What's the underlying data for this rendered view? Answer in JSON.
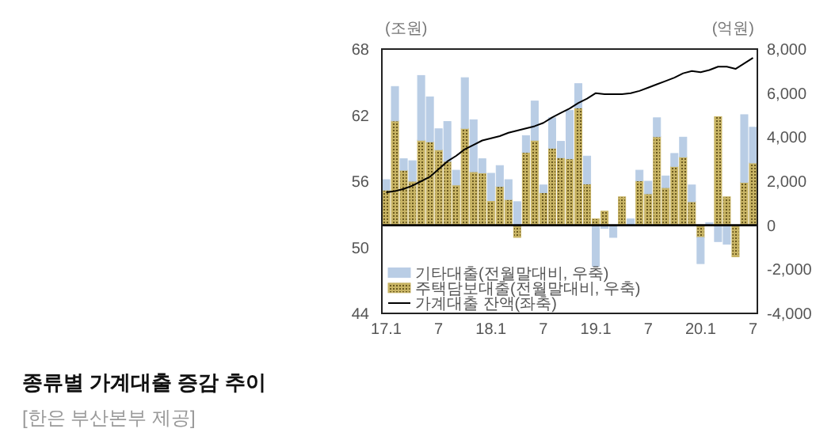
{
  "chart_data": {
    "type": "bar",
    "title": "종류별 가계대출 증감 추이",
    "annotations": [
      "[한은 부산본부 제공]"
    ],
    "ylabel": "(조원)",
    "y2label": "(억원)",
    "categories": [
      "17.1",
      null,
      null,
      null,
      null,
      null,
      "7",
      null,
      null,
      null,
      null,
      null,
      "18.1",
      null,
      null,
      null,
      null,
      null,
      "7",
      null,
      null,
      null,
      null,
      null,
      "19.1",
      null,
      null,
      null,
      null,
      null,
      "7",
      null,
      null,
      null,
      null,
      null,
      "20.1",
      null,
      null,
      null,
      null,
      null,
      "7"
    ],
    "stacked": true,
    "legend": "bottom left",
    "ylim": [
      44,
      68
    ],
    "yticks": [
      68,
      62,
      56,
      50,
      44
    ],
    "y2lim": [
      -4000,
      8000
    ],
    "y2ticks": [
      {
        "value": 8000,
        "label": "8,000"
      },
      {
        "value": 6000,
        "label": "6,000"
      },
      {
        "value": 4000,
        "label": "4,000"
      },
      {
        "value": 2000,
        "label": "2,000"
      },
      0,
      {
        "value": -2000,
        "label": "-2,000"
      },
      {
        "value": -4000,
        "label": "-4,000"
      }
    ],
    "series": [
      {
        "name": "주택담보대출(전월말대비, 우축)",
        "axis": "y2",
        "color": "#c8b464",
        "values": [
          1600,
          4740,
          2500,
          2000,
          3860,
          3790,
          3430,
          2900,
          1830,
          4400,
          2430,
          2380,
          1120,
          1760,
          1170,
          -550,
          3310,
          3860,
          1480,
          3500,
          3070,
          3020,
          5330,
          1880,
          290,
          640,
          0,
          1290,
          0,
          2020,
          1430,
          4020,
          1710,
          2670,
          3100,
          1070,
          -550,
          0,
          4930,
          1290,
          -1430,
          1950,
          2830
        ]
      },
      {
        "name": "기타대출(전월말대비, 우축)",
        "axis": "y2",
        "color": "#b9cde5",
        "values": [
          470,
          1560,
          520,
          930,
          2940,
          2040,
          950,
          1810,
          670,
          2300,
          2360,
          640,
          1240,
          950,
          900,
          1070,
          760,
          1780,
          350,
          1380,
          740,
          2190,
          1100,
          1260,
          -1860,
          -140,
          -550,
          0,
          290,
          480,
          570,
          860,
          530,
          590,
          900,
          760,
          -1190,
          120,
          -740,
          -860,
          0,
          3070,
          1620
        ]
      },
      {
        "name": "가계대출 잔액(좌축)",
        "type": "line",
        "color": "#000000",
        "values": [
          55.0,
          55.1,
          55.3,
          55.6,
          56.0,
          56.4,
          57.1,
          57.8,
          58.3,
          58.9,
          59.3,
          59.7,
          59.9,
          60.1,
          60.4,
          60.6,
          60.8,
          61.0,
          61.3,
          61.8,
          62.2,
          62.6,
          63.1,
          63.5,
          64.0,
          63.9,
          63.9,
          63.9,
          64.0,
          64.2,
          64.5,
          64.8,
          65.1,
          65.4,
          65.8,
          66.0,
          65.9,
          66.1,
          66.4,
          66.4,
          66.2,
          66.7,
          67.2
        ]
      }
    ]
  }
}
